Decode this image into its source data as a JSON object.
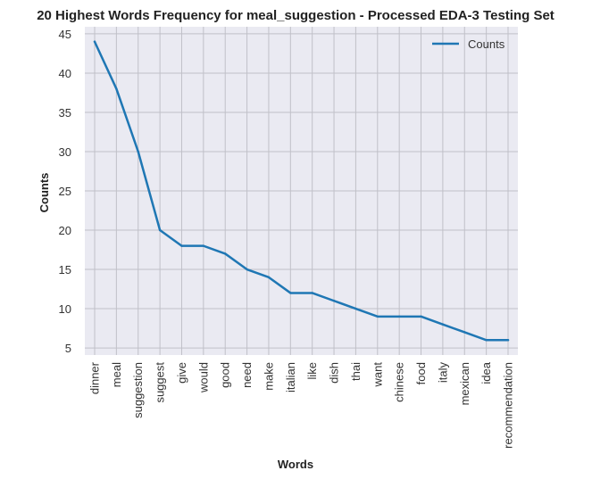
{
  "chart_data": {
    "type": "line",
    "title": "20 Highest Words Frequency for meal_suggestion - Processed EDA-3 Testing Set",
    "xlabel": "Words",
    "ylabel": "Counts",
    "categories": [
      "dinner",
      "meal",
      "suggestion",
      "suggest",
      "give",
      "would",
      "good",
      "need",
      "make",
      "italian",
      "like",
      "dish",
      "thai",
      "want",
      "chinese",
      "food",
      "italy",
      "mexican",
      "idea",
      "recommendation"
    ],
    "series": [
      {
        "name": "Counts",
        "values": [
          44,
          38,
          30,
          20,
          18,
          18,
          17,
          15,
          14,
          12,
          12,
          11,
          10,
          9,
          9,
          9,
          8,
          7,
          6,
          6
        ],
        "color": "#1f77b4"
      }
    ],
    "ylim": [
      4.1,
      45.9
    ],
    "yticks": [
      5,
      10,
      15,
      20,
      25,
      30,
      35,
      40,
      45
    ],
    "grid": true,
    "legend_position": "top-right",
    "colors": {
      "plot_background": "#eaeaf2",
      "grid": "#c0c0c8",
      "line": "#1f77b4"
    }
  }
}
